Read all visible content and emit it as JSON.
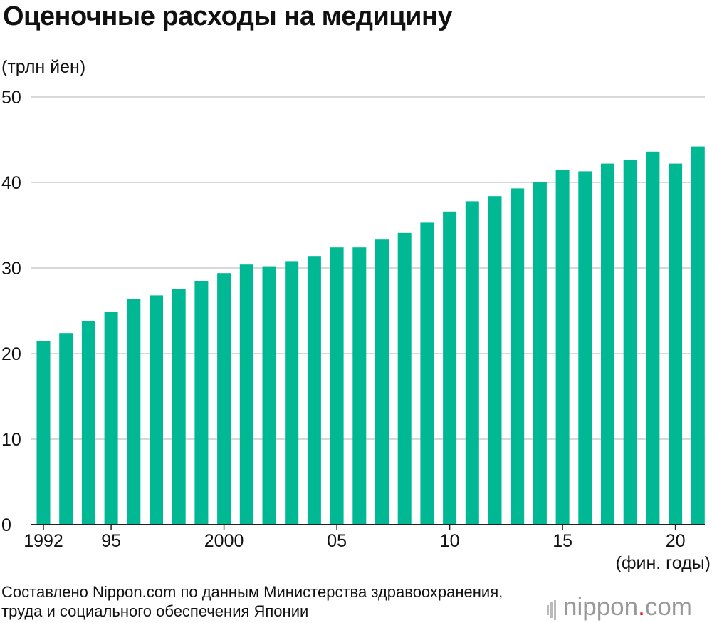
{
  "title": "Оценочные расходы на медицину",
  "unit_label": "(трлн йен)",
  "x_unit_label": "(фин. годы)",
  "source": "Составлено Nippon.com по данным Министерства здравоохранения, труда и социального обеспечения Японии",
  "logo": {
    "left": "nippon",
    "dot": ".",
    "right": "com"
  },
  "colors": {
    "bar": "#00b894",
    "grid": "#cccccc",
    "axis": "#222222"
  },
  "chart_data": {
    "type": "bar",
    "categories": [
      "1992",
      "1993",
      "1994",
      "1995",
      "1996",
      "1997",
      "1998",
      "1999",
      "2000",
      "2001",
      "2002",
      "2003",
      "2004",
      "2005",
      "2006",
      "2007",
      "2008",
      "2009",
      "2010",
      "2011",
      "2012",
      "2013",
      "2014",
      "2015",
      "2016",
      "2017",
      "2018",
      "2019",
      "2020",
      "2021"
    ],
    "values": [
      21.5,
      22.4,
      23.8,
      24.9,
      26.4,
      26.8,
      27.5,
      28.5,
      29.4,
      30.4,
      30.2,
      30.8,
      31.4,
      32.4,
      32.4,
      33.4,
      34.1,
      35.3,
      36.6,
      37.8,
      38.4,
      39.3,
      40.0,
      41.5,
      41.3,
      42.2,
      42.6,
      43.6,
      42.2,
      44.2
    ],
    "x_tick_labels": [
      "1992",
      "95",
      "2000",
      "05",
      "10",
      "15",
      "20"
    ],
    "x_tick_index": [
      0,
      3,
      8,
      13,
      18,
      23,
      28
    ],
    "y_ticks": [
      0,
      10,
      20,
      30,
      40,
      50
    ],
    "ylim": [
      0,
      50
    ],
    "grid": true
  }
}
